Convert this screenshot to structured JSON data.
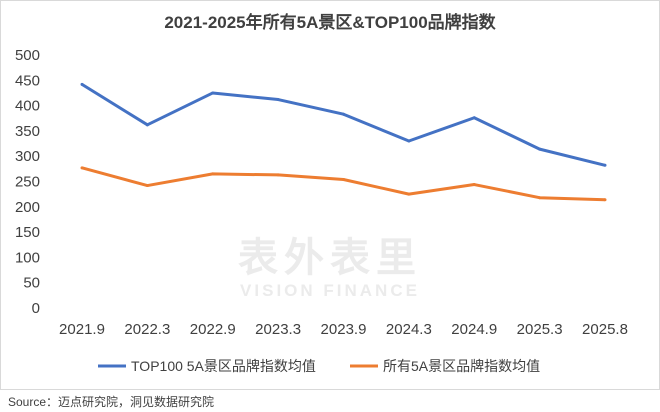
{
  "chart_data": {
    "type": "line",
    "title": "2021-2025年所有5A景区&TOP100品牌指数",
    "categories": [
      "2021.9",
      "2022.3",
      "2022.9",
      "2023.3",
      "2023.9",
      "2024.3",
      "2024.9",
      "2025.3",
      "2025.8"
    ],
    "series": [
      {
        "name": "TOP100 5A景区品牌指数均值",
        "color": "#4472c4",
        "values": [
          442,
          362,
          425,
          412,
          383,
          330,
          376,
          314,
          282
        ]
      },
      {
        "name": "所有5A景区品牌指数均值",
        "color": "#ed7d31",
        "values": [
          277,
          242,
          265,
          263,
          254,
          225,
          244,
          218,
          214
        ]
      }
    ],
    "ylim": [
      0,
      500
    ],
    "yticks": [
      0,
      50,
      100,
      150,
      200,
      250,
      300,
      350,
      400,
      450,
      500
    ],
    "grid": false,
    "legend": "bottom"
  },
  "watermark": {
    "line1": "表外表里",
    "line2": "VISION FINANCE"
  },
  "source": "Source：迈点研究院，洞见数据研究院"
}
